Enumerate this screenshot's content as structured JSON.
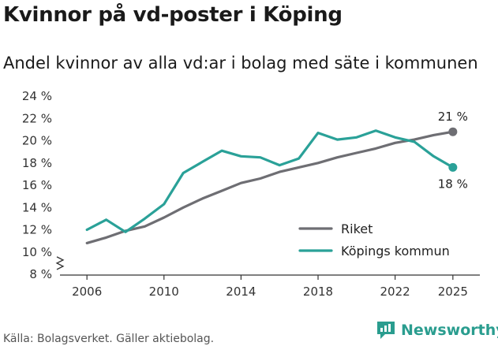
{
  "title": "Kvinnor på vd-poster i Köping",
  "subtitle": "Andel kvinnor av alla vd:ar i bolag med säte i kommunen",
  "source": "Källa: Bolagsverket. Gäller aktiebolag.",
  "brand": "Newsworthy",
  "chart_data": {
    "type": "line",
    "title": "Kvinnor på vd-poster i Köping",
    "subtitle": "Andel kvinnor av alla vd:ar i bolag med säte i kommunen",
    "xlabel": "",
    "ylabel": "",
    "x": [
      2006,
      2007,
      2008,
      2009,
      2010,
      2011,
      2012,
      2013,
      2014,
      2015,
      2016,
      2017,
      2018,
      2019,
      2020,
      2021,
      2022,
      2023,
      2024,
      2025
    ],
    "xlim": [
      2004.6,
      2026.4
    ],
    "ylim": [
      8,
      24
    ],
    "x_ticks": [
      2006,
      2010,
      2014,
      2018,
      2022,
      2025
    ],
    "y_ticks": [
      8,
      10,
      12,
      14,
      16,
      18,
      20,
      22,
      24
    ],
    "y_tick_labels": [
      "8 %",
      "10 %",
      "12 %",
      "14 %",
      "16 %",
      "18 %",
      "20 %",
      "22 %",
      "24 %"
    ],
    "axis_break": true,
    "grid": false,
    "series": [
      {
        "name": "Riket",
        "color": "#6e6e73",
        "values": [
          10.8,
          11.3,
          11.9,
          12.3,
          13.1,
          14.0,
          14.8,
          15.5,
          16.2,
          16.6,
          17.2,
          17.6,
          18.0,
          18.5,
          18.9,
          19.3,
          19.8,
          20.1,
          20.5,
          20.8
        ],
        "end_label": "21 %"
      },
      {
        "name": "Köpings kommun",
        "color": "#2aa198",
        "values": [
          12.0,
          12.9,
          11.8,
          13.0,
          14.3,
          17.1,
          18.1,
          19.1,
          18.6,
          18.5,
          17.8,
          18.4,
          20.7,
          20.1,
          20.3,
          20.9,
          20.3,
          19.9,
          18.6,
          17.6
        ],
        "end_label": "18 %"
      }
    ],
    "legend": "bottom-right"
  }
}
